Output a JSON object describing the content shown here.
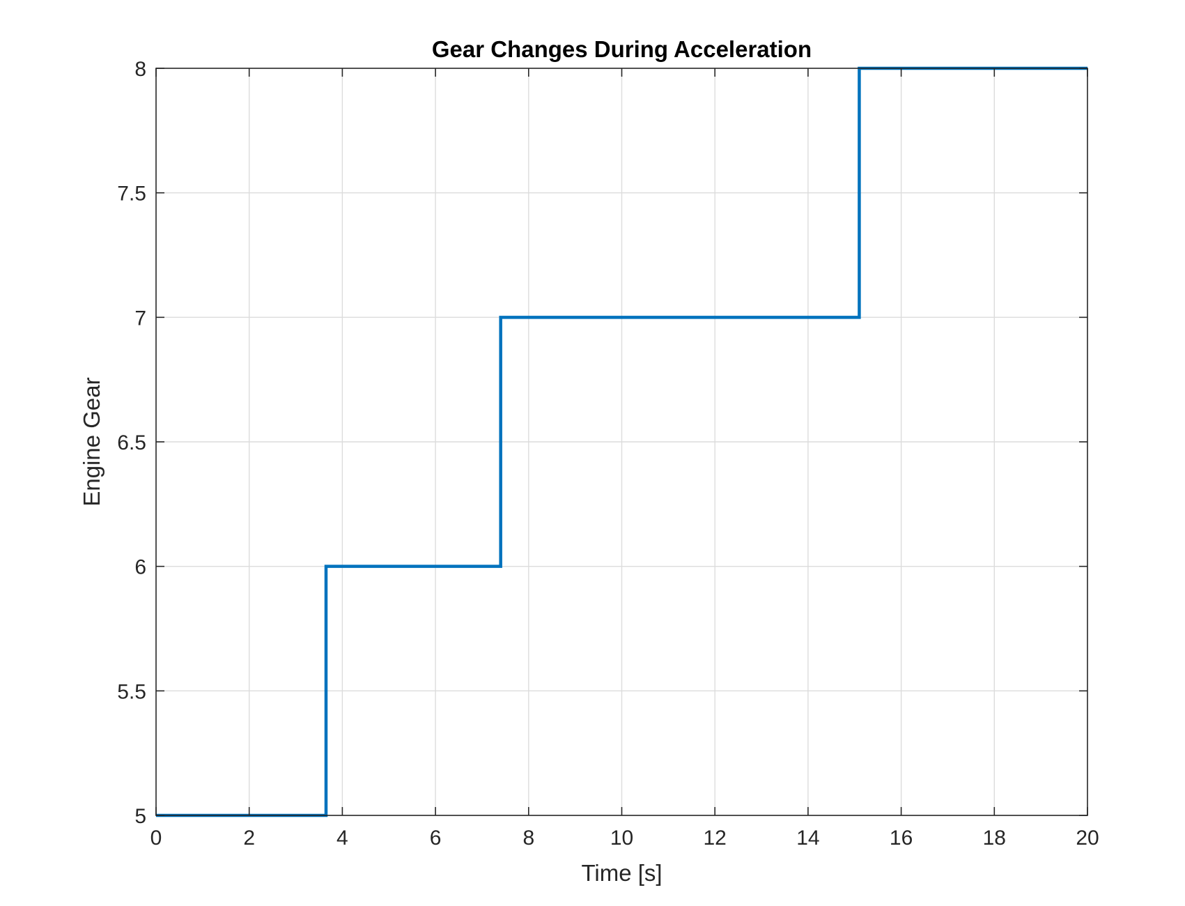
{
  "chart_data": {
    "type": "line",
    "title": "Gear Changes During Acceleration",
    "xlabel": "Time [s]",
    "ylabel": "Engine Gear",
    "xlim": [
      0,
      20
    ],
    "ylim": [
      5,
      8
    ],
    "xticks": [
      0,
      2,
      4,
      6,
      8,
      10,
      12,
      14,
      16,
      18,
      20
    ],
    "yticks": [
      5,
      5.5,
      6,
      6.5,
      7,
      7.5,
      8
    ],
    "xtick_labels": [
      "0",
      "2",
      "4",
      "6",
      "8",
      "10",
      "12",
      "14",
      "16",
      "18",
      "20"
    ],
    "ytick_labels": [
      "5",
      "5.5",
      "6",
      "6.5",
      "7",
      "7.5",
      "8"
    ],
    "grid": true,
    "legend": false,
    "series": [
      {
        "color": "#0072BD",
        "step": true,
        "points": [
          [
            0,
            5
          ],
          [
            3.65,
            5
          ],
          [
            3.65,
            6
          ],
          [
            7.4,
            6
          ],
          [
            7.4,
            7
          ],
          [
            15.1,
            7
          ],
          [
            15.1,
            8
          ],
          [
            20,
            8
          ]
        ]
      }
    ]
  }
}
